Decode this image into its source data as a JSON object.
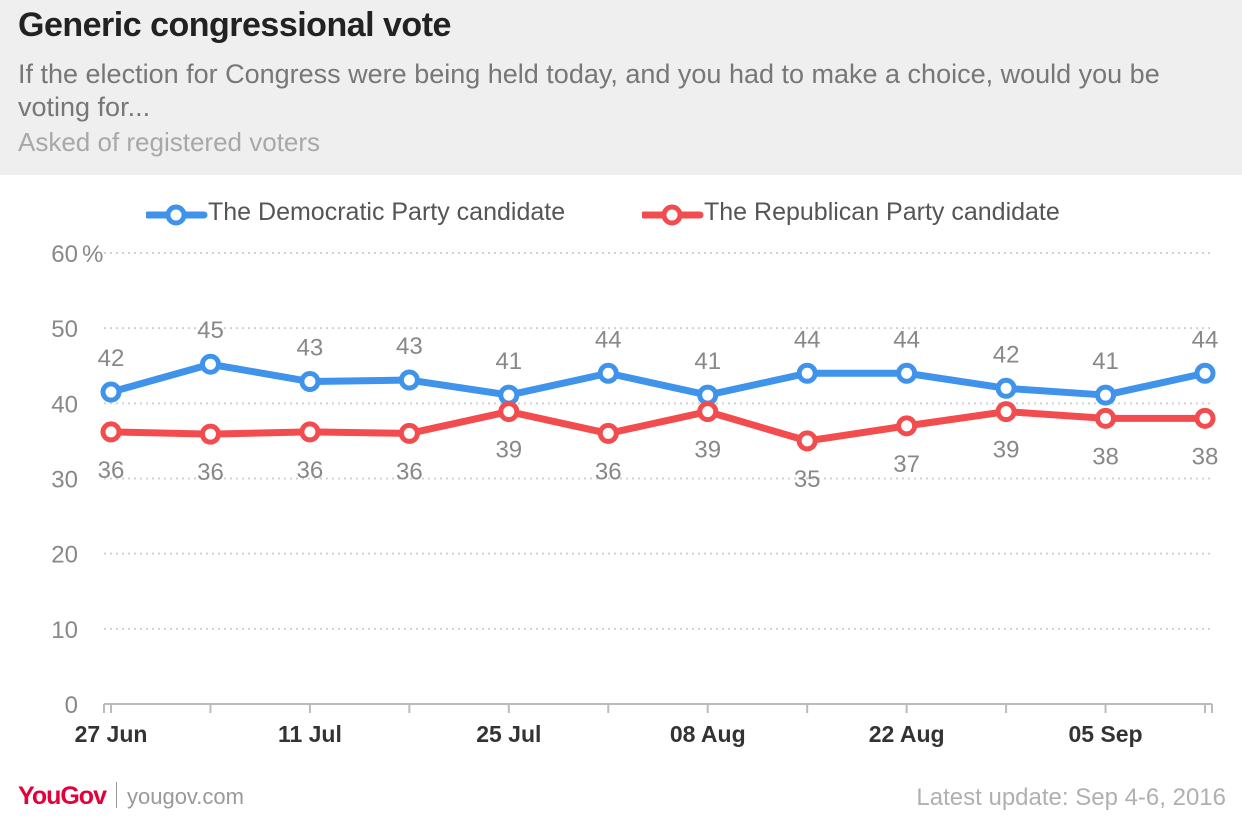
{
  "header": {
    "title": "Generic congressional vote",
    "subtitle": "If the election for Congress were being held today, and you had to make a choice, would you be voting for...",
    "note": "Asked of registered voters"
  },
  "footer": {
    "brand": "YouGov",
    "url": "yougov.com",
    "update": "Latest update: Sep 4-6, 2016"
  },
  "chart_data": {
    "type": "line",
    "y_unit": "%",
    "ylim": [
      0,
      60
    ],
    "yticks": [
      0,
      10,
      20,
      30,
      40,
      50,
      60
    ],
    "grid": "horizontal dotted",
    "legend_position": "top",
    "x_tick_labels": [
      "27 Jun",
      "11 Jul",
      "25 Jul",
      "08 Aug",
      "22 Aug",
      "05 Sep"
    ],
    "series": [
      {
        "name": "The Democratic Party candidate",
        "color": "#3f93ea",
        "values": [
          41.5,
          45.2,
          42.9,
          43.1,
          41.1,
          44.0,
          41.1,
          44.0,
          44.0,
          42.0,
          41.1,
          44.0
        ],
        "labels": [
          "42",
          "45",
          "43",
          "43",
          "41",
          "44",
          "41",
          "44",
          "44",
          "42",
          "41",
          "44"
        ]
      },
      {
        "name": "The Republican Party candidate",
        "color": "#f24c4f",
        "values": [
          36.2,
          35.9,
          36.2,
          36.0,
          38.9,
          36.0,
          38.9,
          35.0,
          37.0,
          38.9,
          38.0,
          38.0
        ],
        "labels": [
          "36",
          "36",
          "36",
          "36",
          "39",
          "36",
          "39",
          "35",
          "37",
          "39",
          "38",
          "38"
        ]
      }
    ]
  }
}
